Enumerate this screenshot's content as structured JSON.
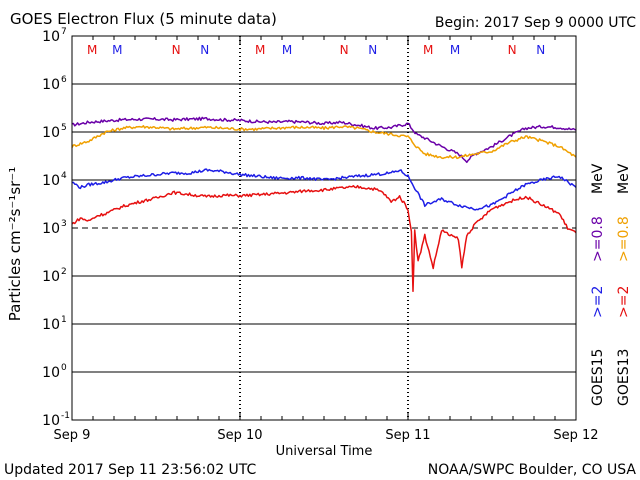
{
  "header": {
    "title": "GOES Electron Flux (5 minute data)",
    "begin": "Begin: 2017 Sep 9 0000 UTC"
  },
  "footer": {
    "updated": "Updated 2017 Sep 11 23:56:02 UTC",
    "credit": "NOAA/SWPC Boulder, CO USA"
  },
  "colors": {
    "goes15_gt2": "#1e1ee6",
    "goes15_gt08": "#6a00a8",
    "goes13_gt2": "#e61010",
    "goes13_gt08": "#f0a000",
    "marker_m": "#e61010",
    "marker_n": "#1e1ee6"
  },
  "chart_data": {
    "type": "line",
    "title": "GOES Electron Flux (5 minute data)",
    "xlabel": "Universal Time",
    "ylabel": "Particles cm⁻²s⁻¹sr⁻¹",
    "y_scale": "log",
    "ylim": [
      0.1,
      10000000
    ],
    "y_ticks": [
      {
        "value": 10000000,
        "base": "10",
        "exp": "7"
      },
      {
        "value": 1000000,
        "base": "10",
        "exp": "6"
      },
      {
        "value": 100000,
        "base": "10",
        "exp": "5"
      },
      {
        "value": 10000,
        "base": "10",
        "exp": "4"
      },
      {
        "value": 1000,
        "base": "10",
        "exp": "3"
      },
      {
        "value": 100,
        "base": "10",
        "exp": "2"
      },
      {
        "value": 10,
        "base": "10",
        "exp": "1"
      },
      {
        "value": 1,
        "base": "10",
        "exp": "0"
      },
      {
        "value": 0.1,
        "base": "10",
        "exp": "-1"
      }
    ],
    "x_ticks": [
      {
        "day": 0,
        "label": "Sep 9"
      },
      {
        "day": 1,
        "label": "Sep 10"
      },
      {
        "day": 2,
        "label": "Sep 11"
      },
      {
        "day": 3,
        "label": "Sep 12"
      }
    ],
    "threshold_dashed": 1000,
    "grid": "solid horizontal lines at each decade",
    "markers": [
      {
        "day": 0.12,
        "label": "M",
        "sat": "GOES13"
      },
      {
        "day": 0.27,
        "label": "M",
        "sat": "GOES15"
      },
      {
        "day": 0.62,
        "label": "N",
        "sat": "GOES13"
      },
      {
        "day": 0.79,
        "label": "N",
        "sat": "GOES15"
      },
      {
        "day": 1.12,
        "label": "M",
        "sat": "GOES13"
      },
      {
        "day": 1.28,
        "label": "M",
        "sat": "GOES15"
      },
      {
        "day": 1.62,
        "label": "N",
        "sat": "GOES13"
      },
      {
        "day": 1.79,
        "label": "N",
        "sat": "GOES15"
      },
      {
        "day": 2.12,
        "label": "M",
        "sat": "GOES13"
      },
      {
        "day": 2.28,
        "label": "M",
        "sat": "GOES15"
      },
      {
        "day": 2.62,
        "label": "N",
        "sat": "GOES13"
      },
      {
        "day": 2.79,
        "label": "N",
        "sat": "GOES15"
      }
    ],
    "legend": {
      "placement": "right",
      "goes15_label": "GOES15",
      "goes13_label": "GOES13",
      "goes15_gt2": ">=2",
      "goes15_gt08": ">=0.8",
      "goes13_gt2": ">=2",
      "goes13_gt08": ">=0.8",
      "unit": "MeV"
    },
    "series": [
      {
        "name": "GOES15 >=0.8 MeV",
        "color": "#6a00a8",
        "x": [
          0,
          0.1,
          0.2,
          0.3,
          0.4,
          0.5,
          0.6,
          0.7,
          0.8,
          0.9,
          1.0,
          1.1,
          1.2,
          1.3,
          1.4,
          1.5,
          1.6,
          1.7,
          1.8,
          1.9,
          2.0,
          2.05,
          2.1,
          2.2,
          2.3,
          2.35,
          2.4,
          2.5,
          2.6,
          2.7,
          2.8,
          2.9,
          3.0
        ],
        "y": [
          140000,
          160000,
          170000,
          180000,
          185000,
          185000,
          180000,
          185000,
          190000,
          180000,
          175000,
          165000,
          160000,
          165000,
          160000,
          150000,
          160000,
          140000,
          120000,
          125000,
          150000,
          90000,
          75000,
          50000,
          35000,
          25000,
          35000,
          50000,
          80000,
          120000,
          130000,
          125000,
          110000
        ]
      },
      {
        "name": "GOES13 >=0.8 MeV",
        "color": "#f0a000",
        "x": [
          0,
          0.1,
          0.2,
          0.3,
          0.4,
          0.5,
          0.6,
          0.7,
          0.8,
          0.9,
          1.0,
          1.1,
          1.2,
          1.3,
          1.4,
          1.5,
          1.6,
          1.7,
          1.8,
          1.9,
          2.0,
          2.05,
          2.1,
          2.2,
          2.3,
          2.4,
          2.5,
          2.6,
          2.7,
          2.8,
          2.9,
          3.0
        ],
        "y": [
          50000,
          65000,
          100000,
          120000,
          130000,
          125000,
          115000,
          120000,
          125000,
          120000,
          115000,
          115000,
          120000,
          125000,
          125000,
          120000,
          130000,
          120000,
          100000,
          90000,
          80000,
          50000,
          35000,
          30000,
          30000,
          35000,
          40000,
          60000,
          80000,
          65000,
          50000,
          30000
        ]
      },
      {
        "name": "GOES15 >=2 MeV",
        "color": "#1e1ee6",
        "x": [
          0,
          0.05,
          0.1,
          0.2,
          0.3,
          0.4,
          0.5,
          0.6,
          0.7,
          0.8,
          0.9,
          1.0,
          1.1,
          1.2,
          1.3,
          1.4,
          1.5,
          1.6,
          1.7,
          1.8,
          1.9,
          1.95,
          2.0,
          2.05,
          2.1,
          2.2,
          2.3,
          2.4,
          2.5,
          2.6,
          2.7,
          2.8,
          2.9,
          3.0
        ],
        "y": [
          9000,
          7000,
          8000,
          9000,
          11000,
          12000,
          13000,
          14000,
          14000,
          16000,
          15000,
          13000,
          12000,
          11000,
          11000,
          11000,
          10000,
          11000,
          12000,
          13000,
          14000,
          16000,
          12000,
          6000,
          3000,
          4000,
          3000,
          2500,
          3000,
          5000,
          8000,
          10000,
          12000,
          7000
        ]
      },
      {
        "name": "GOES13 >=2 MeV",
        "color": "#e61010",
        "x": [
          0,
          0.05,
          0.1,
          0.15,
          0.2,
          0.3,
          0.4,
          0.5,
          0.6,
          0.7,
          0.8,
          0.9,
          1.0,
          1.1,
          1.2,
          1.3,
          1.4,
          1.5,
          1.6,
          1.7,
          1.8,
          1.85,
          1.9,
          1.95,
          2.0,
          2.02,
          2.03,
          2.04,
          2.06,
          2.1,
          2.15,
          2.2,
          2.25,
          2.3,
          2.32,
          2.35,
          2.4,
          2.5,
          2.6,
          2.7,
          2.8,
          2.9,
          2.95,
          3.0
        ],
        "y": [
          1200,
          1600,
          1400,
          1800,
          2000,
          2800,
          3500,
          4200,
          5500,
          5000,
          4500,
          4800,
          4700,
          4900,
          5200,
          5500,
          6000,
          6200,
          6800,
          7200,
          6500,
          5500,
          3500,
          4500,
          2500,
          800,
          50,
          900,
          200,
          700,
          150,
          900,
          700,
          600,
          150,
          700,
          1200,
          2500,
          3500,
          4500,
          3000,
          2000,
          1000,
          800
        ]
      }
    ]
  }
}
